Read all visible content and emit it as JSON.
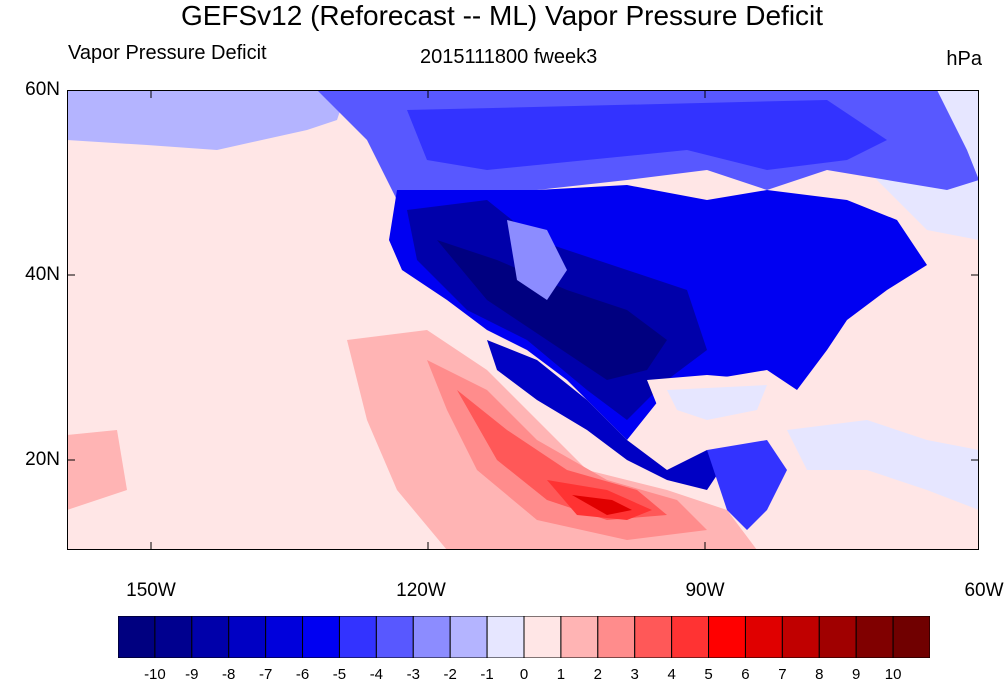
{
  "title": "GEFSv12 (Reforecast -- ML) Vapor Pressure Deficit",
  "left_label": "Vapor Pressure Deficit",
  "center_label": "2015111800 fweek3",
  "right_label": "hPa",
  "lat_labels": [
    "60N",
    "40N",
    "20N"
  ],
  "lon_labels": [
    "150W",
    "120W",
    "90W",
    "60W"
  ],
  "colorbar": {
    "labels": [
      "-10",
      "-9",
      "-8",
      "-7",
      "-6",
      "-5",
      "-4",
      "-3",
      "-2",
      "-1",
      "0",
      "1",
      "2",
      "3",
      "4",
      "5",
      "6",
      "7",
      "8",
      "9",
      "10"
    ],
    "colors": [
      "#000080",
      "#00008f",
      "#0000aa",
      "#0000c4",
      "#0000dc",
      "#0000f2",
      "#3333ff",
      "#5858ff",
      "#8c8cff",
      "#b4b4ff",
      "#e6e6ff",
      "#ffe6e6",
      "#ffb4b4",
      "#ff8c8c",
      "#ff5858",
      "#ff3333",
      "#ff0000",
      "#e00000",
      "#c00000",
      "#a00000",
      "#800000",
      "#700000"
    ]
  },
  "map": {
    "ocean_color": "#ffe6e6",
    "land_colors": [
      "#e6e6ff",
      "#b4b4ff",
      "#8c8cff",
      "#5858ff",
      "#3333ff",
      "#0000f2",
      "#0000c4",
      "#0000aa",
      "#000080"
    ],
    "warm_colors": [
      "#ffb4b4",
      "#ff8c8c",
      "#ff5858",
      "#ff3333",
      "#ff0000",
      "#e00000"
    ]
  }
}
